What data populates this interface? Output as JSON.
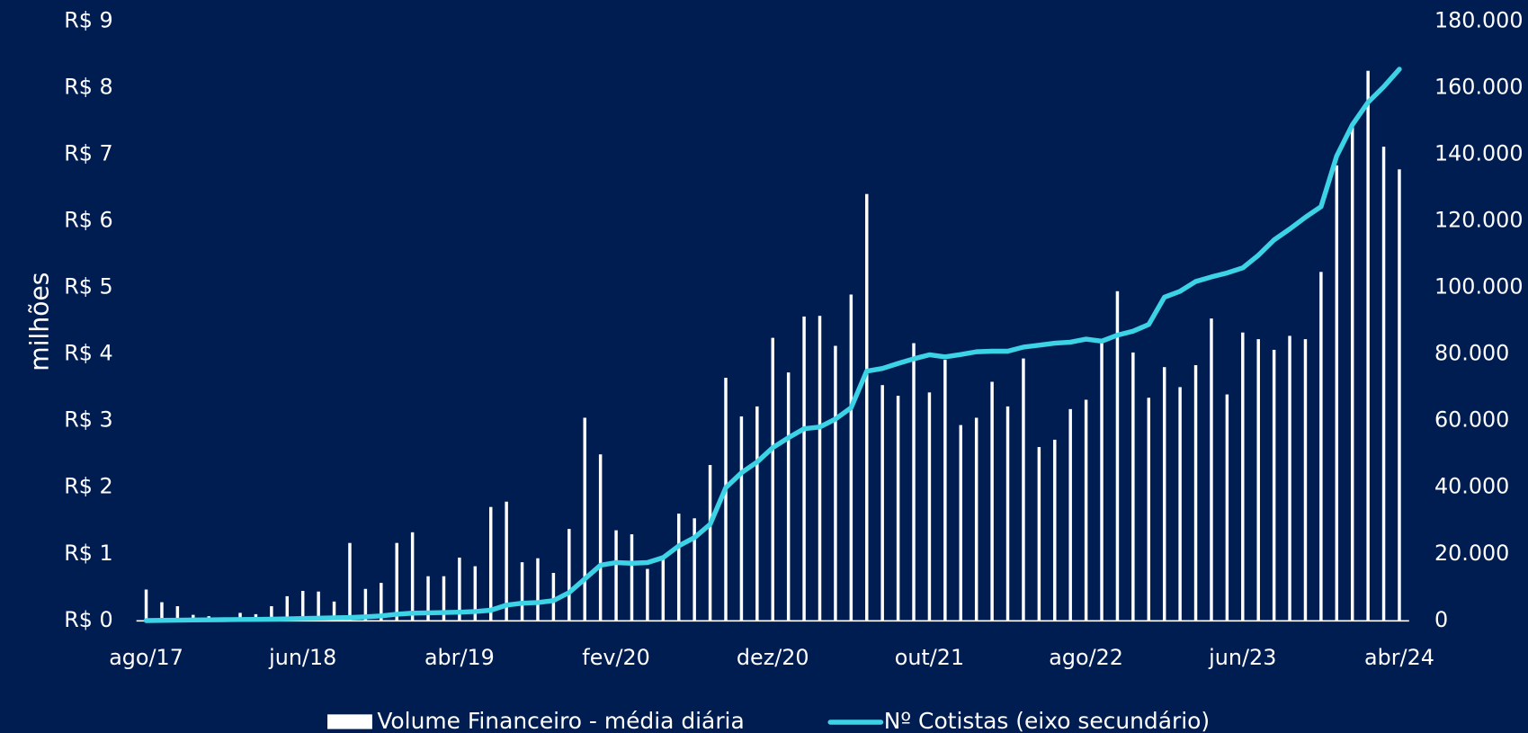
{
  "chart_data": {
    "type": "bar_line",
    "y_label": "milhões",
    "categories": [
      "ago/17",
      null,
      null,
      null,
      null,
      null,
      null,
      null,
      null,
      null,
      "jun/18",
      null,
      null,
      null,
      null,
      null,
      null,
      null,
      null,
      null,
      "abr/19",
      null,
      null,
      null,
      null,
      null,
      null,
      null,
      null,
      null,
      "fev/20",
      null,
      null,
      null,
      null,
      null,
      null,
      null,
      null,
      null,
      "dez/20",
      null,
      null,
      null,
      null,
      null,
      null,
      null,
      null,
      null,
      "out/21",
      null,
      null,
      null,
      null,
      null,
      null,
      null,
      null,
      null,
      "ago/22",
      null,
      null,
      null,
      null,
      null,
      null,
      null,
      null,
      null,
      "jun/23",
      null,
      null,
      null,
      null,
      null,
      null,
      null,
      null,
      null,
      "abr/24"
    ],
    "series": [
      {
        "name": "Volume Financeiro - média diária",
        "color": "#ffffff",
        "type": "bar",
        "values": [
          0.47,
          0.28,
          0.22,
          0.09,
          0.07,
          0,
          0.12,
          0.1,
          0.22,
          0.37,
          0.45,
          0.44,
          0.29,
          1.17,
          0.48,
          0.57,
          1.17,
          1.33,
          0.67,
          0.67,
          0.95,
          0.82,
          1.71,
          1.79,
          0.88,
          0.94,
          0.72,
          1.38,
          3.05,
          2.5,
          1.36,
          1.3,
          0.78,
          0.98,
          1.61,
          1.54,
          2.34,
          3.65,
          3.07,
          3.22,
          4.25,
          3.73,
          4.57,
          4.58,
          4.13,
          4.9,
          6.41,
          3.54,
          3.38,
          4.17,
          3.43,
          3.92,
          2.94,
          3.05,
          3.59,
          3.22,
          3.94,
          2.61,
          2.72,
          3.18,
          3.32,
          4.19,
          4.95,
          4.03,
          3.35,
          3.81,
          3.51,
          3.84,
          4.54,
          3.4,
          4.33,
          4.23,
          4.07,
          4.28,
          4.23,
          5.24,
          6.84,
          7.47,
          8.26,
          7.12,
          6.78
        ]
      },
      {
        "name": "Nº Cotistas (eixo secundário)",
        "color": "#3dd3e6",
        "type": "line",
        "axis": "y2",
        "values": [
          100,
          150,
          200,
          250,
          300,
          350,
          400,
          450,
          500,
          600,
          700,
          800,
          900,
          1000,
          1200,
          1500,
          2000,
          2300,
          2400,
          2500,
          2600,
          2800,
          3200,
          4700,
          5300,
          5500,
          6100,
          8500,
          12600,
          16700,
          17500,
          17300,
          17500,
          19000,
          22500,
          25000,
          29000,
          40000,
          44500,
          47700,
          52000,
          55000,
          57700,
          58200,
          60600,
          64000,
          75000,
          75800,
          77300,
          78700,
          79900,
          79300,
          80000,
          80800,
          81000,
          81000,
          82200,
          82800,
          83400,
          83700,
          84600,
          84000,
          85800,
          87000,
          89000,
          97200,
          99000,
          101900,
          103300,
          104500,
          106000,
          109800,
          114400,
          117700,
          121200,
          124400,
          139600,
          149000,
          155700,
          160400,
          165700
        ]
      }
    ],
    "ylim": [
      0,
      9
    ],
    "yticks": [
      {
        "value": 0,
        "label": "R$ 0"
      },
      {
        "value": 1,
        "label": "R$ 1"
      },
      {
        "value": 2,
        "label": "R$ 2"
      },
      {
        "value": 3,
        "label": "R$ 3"
      },
      {
        "value": 4,
        "label": "R$ 4"
      },
      {
        "value": 5,
        "label": "R$ 5"
      },
      {
        "value": 6,
        "label": "R$ 6"
      },
      {
        "value": 7,
        "label": "R$ 7"
      },
      {
        "value": 8,
        "label": "R$ 8"
      },
      {
        "value": 9,
        "label": "R$ 9"
      }
    ],
    "y2lim": [
      0,
      180000
    ],
    "y2ticks": [
      0,
      {
        "value": 20000,
        "label": "20.000"
      },
      {
        "value": 40000,
        "label": "40.000"
      },
      {
        "value": 60000,
        "label": "60.000"
      },
      {
        "value": 80000,
        "label": "80.000"
      },
      {
        "value": 100000,
        "label": "100.000"
      },
      {
        "value": 120000,
        "label": "120.000"
      },
      {
        "value": 140000,
        "label": "140.000"
      },
      {
        "value": 160000,
        "label": "160.000"
      },
      {
        "value": 180000,
        "label": "180.000"
      }
    ],
    "legend": "bottom"
  }
}
